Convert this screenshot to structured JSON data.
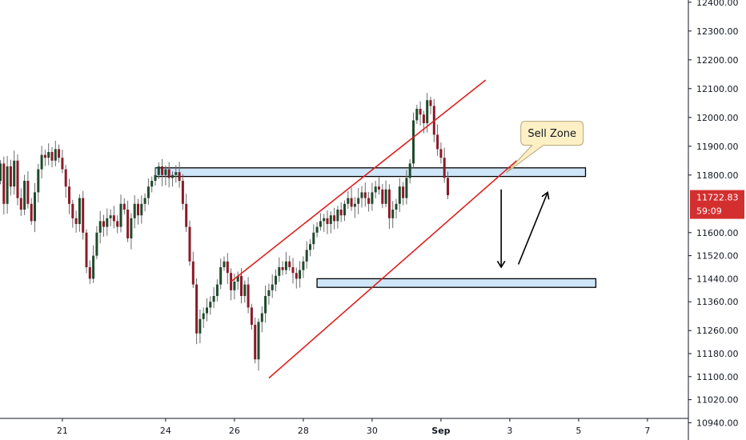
{
  "chart_data": {
    "type": "candlestick",
    "title": "",
    "xlabel": "",
    "ylabel": "",
    "ylim": [
      10880,
      12420
    ],
    "y_ticks": [
      "12400.00",
      "12300.00",
      "12200.00",
      "12100.00",
      "12000.00",
      "11900.00",
      "11800.00",
      "11600.00",
      "11520.00",
      "11440.00",
      "11360.00",
      "11260.00",
      "11180.00",
      "11100.00",
      "11020.00",
      "10940.00"
    ],
    "x_ticks": [
      {
        "label": "21",
        "bar": 18,
        "bold": false
      },
      {
        "label": "24",
        "bar": 48,
        "bold": false
      },
      {
        "label": "26",
        "bar": 68,
        "bold": false
      },
      {
        "label": "28",
        "bar": 88,
        "bold": false
      },
      {
        "label": "30",
        "bar": 108,
        "bold": false
      },
      {
        "label": "Sep",
        "bar": 128,
        "bold": true
      },
      {
        "label": "3",
        "bar": 148,
        "bold": false
      },
      {
        "label": "5",
        "bar": 168,
        "bold": false
      },
      {
        "label": "7",
        "bar": 188,
        "bold": false
      }
    ],
    "bars_start": 11780,
    "candle_closes": [
      11840,
      11700,
      11830,
      11760,
      11850,
      11720,
      11680,
      11780,
      11700,
      11640,
      11740,
      11820,
      11870,
      11860,
      11880,
      11850,
      11890,
      11860,
      11820,
      11760,
      11700,
      11650,
      11630,
      11720,
      11600,
      11480,
      11440,
      11520,
      11600,
      11640,
      11620,
      11650,
      11660,
      11640,
      11620,
      11700,
      11680,
      11580,
      11650,
      11700,
      11660,
      11700,
      11720,
      11760,
      11780,
      11800,
      11830,
      11800,
      11820,
      11790,
      11800,
      11810,
      11780,
      11700,
      11620,
      11500,
      11420,
      11250,
      11300,
      11320,
      11340,
      11360,
      11380,
      11420,
      11480,
      11500,
      11460,
      11400,
      11430,
      11450,
      11380,
      11420,
      11340,
      11280,
      11160,
      11290,
      11320,
      11380,
      11400,
      11420,
      11450,
      11480,
      11470,
      11500,
      11480,
      11460,
      11440,
      11470,
      11500,
      11540,
      11560,
      11600,
      11620,
      11640,
      11650,
      11630,
      11660,
      11640,
      11680,
      11660,
      11700,
      11720,
      11690,
      11700,
      11720,
      11740,
      11720,
      11700,
      11740,
      11760,
      11750,
      11700,
      11750,
      11650,
      11680,
      11700,
      11760,
      11720,
      11790,
      11840,
      11990,
      12030,
      12010,
      11980,
      12060,
      12040,
      11940,
      11890,
      11860,
      11790,
      11730
    ],
    "current_price": {
      "label": "11722.83",
      "countdown": "59:09",
      "value": 11722.83
    },
    "zones": [
      {
        "name": "resistance",
        "bar_start": 45,
        "bar_end": 170,
        "y_low": 11795,
        "y_high": 11825
      },
      {
        "name": "support",
        "bar_start": 92,
        "bar_end": 173,
        "y_low": 11410,
        "y_high": 11440
      }
    ],
    "channel_lines": [
      {
        "bar1": 67,
        "y1": 11430,
        "bar2": 141,
        "y2": 12130
      },
      {
        "bar1": 78,
        "y1": 11095,
        "bar2": 150,
        "y2": 11850
      }
    ],
    "arrows": [
      {
        "name": "down-arrow",
        "bar1": 145.5,
        "y1": 11750,
        "bar2": 145.5,
        "y2": 11480
      },
      {
        "name": "up-arrow",
        "bar1": 150.5,
        "y1": 11490,
        "bar2": 159,
        "y2": 11740
      }
    ],
    "annotation": {
      "text": "Sell Zone",
      "bar": 154,
      "y": 11945,
      "pointer_bar": 147,
      "pointer_y": 11808
    }
  },
  "colors": {
    "up_candle": "#1f4a2c",
    "down_candle": "#8b1a28",
    "wick": "#6b6b6b",
    "zone_fill": "#cfe6f8",
    "zone_stroke": "#000000",
    "channel": "#e02020",
    "callout_fill": "#fdf0c4",
    "callout_stroke": "#b8a47a",
    "price_tag": "#d32f2f"
  }
}
